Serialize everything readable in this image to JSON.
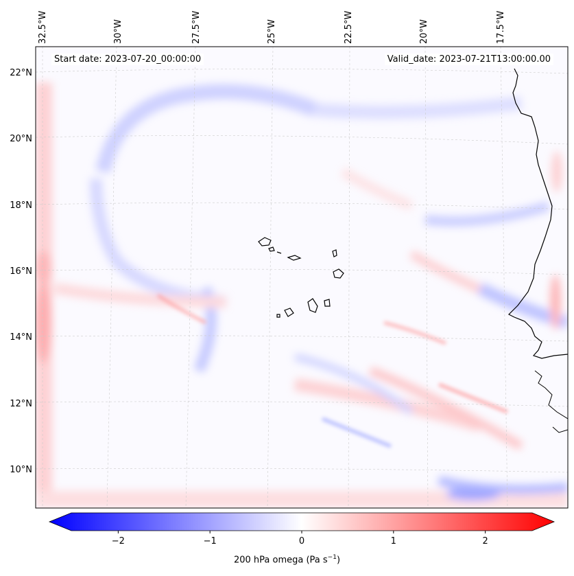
{
  "map": {
    "start_date": "Start date: 2023-07-20_00:00:00",
    "valid_date": "Valid_date: 2023-07-21T13:00:00.00",
    "lon_labels": [
      "32.5°W",
      "30°W",
      "27.5°W",
      "25°W",
      "22.5°W",
      "20°W",
      "17.5°W"
    ],
    "lat_labels": [
      "22°N",
      "20°N",
      "18°N",
      "16°N",
      "14°N",
      "12°N",
      "10°N"
    ]
  },
  "colorbar": {
    "label_prefix": "200 hPa omega (Pa s",
    "label_exp": "−1",
    "label_suffix": ")",
    "ticks": [
      "−2",
      "−1",
      "0",
      "1",
      "2"
    ],
    "range": [
      -2.75,
      2.75
    ],
    "colormap": "bwr",
    "color_low": "#0000ff",
    "color_mid": "#ffffff",
    "color_high": "#ff0000"
  }
}
